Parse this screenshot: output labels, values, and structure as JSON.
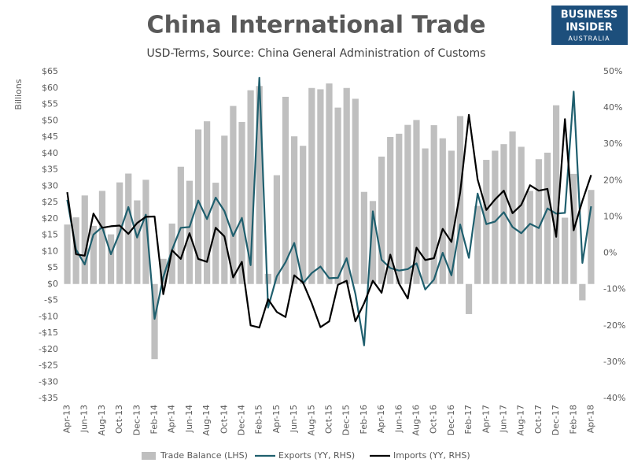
{
  "chart_data": {
    "type": "bar",
    "title": "China International Trade",
    "subtitle": "USD-Terms, Source: China General Administration of Customs",
    "logo": [
      "BUSINESS",
      "INSIDER",
      "AUSTRALIA"
    ],
    "y_label": "Billions",
    "categories": [
      "Apr-13",
      null,
      "Jun-13",
      null,
      "Aug-13",
      null,
      "Oct-13",
      null,
      "Dec-13",
      null,
      "Feb-14",
      null,
      "Apr-14",
      null,
      "Jun-14",
      null,
      "Aug-14",
      null,
      "Oct-14",
      null,
      "Dec-14",
      null,
      "Feb-15",
      null,
      "Apr-15",
      null,
      "Jun-15",
      null,
      "Aug-15",
      null,
      "Oct-15",
      null,
      "Dec-15",
      null,
      "Feb-16",
      null,
      "Apr-16",
      null,
      "Jun-16",
      null,
      "Aug-16",
      null,
      "Oct-16",
      null,
      "Dec-16",
      null,
      "Feb-17",
      null,
      "Apr-17",
      null,
      "Jun-17",
      null,
      "Aug-17",
      null,
      "Oct-17",
      null,
      "Dec-17",
      null,
      "Feb-18",
      null,
      "Apr-18"
    ],
    "series": [
      {
        "name": "Trade Balance (LHS)",
        "type": "bar",
        "axis": "y",
        "color": "#bfbfbf",
        "values": [
          18.2,
          20.4,
          27.1,
          17.8,
          28.5,
          15.2,
          31.1,
          33.8,
          25.6,
          31.9,
          -23,
          7.7,
          18.5,
          35.9,
          31.6,
          47.3,
          49.8,
          31.0,
          45.4,
          54.5,
          49.6,
          59.3,
          60.6,
          3.1,
          33.3,
          57.3,
          45.2,
          42.3,
          60,
          59.6,
          61.4,
          54,
          60,
          56.7,
          28.2,
          25.4,
          39,
          45,
          46,
          48.7,
          50.2,
          41.5,
          48.6,
          44.6,
          40.8,
          51.4,
          -9.2,
          23.9,
          38,
          40.8,
          42.8,
          46.7,
          42,
          28.5,
          38.2,
          40.2,
          54.7,
          20.3,
          33.7,
          -5,
          28.8
        ]
      },
      {
        "name": "Exports (YY, RHS)",
        "type": "line",
        "axis": "y2",
        "color": "#1f5f6e",
        "values": [
          14.7,
          1.0,
          -3.1,
          5.1,
          7.2,
          -0.3,
          5.6,
          12.7,
          4.3,
          10.6,
          -18.1,
          -6.6,
          0.9,
          7.0,
          7.2,
          14.5,
          9.4,
          15.3,
          11.6,
          4.7,
          9.7,
          -3.3,
          48.3,
          -15,
          -6.4,
          -2.5,
          2.8,
          -8.3,
          -5.5,
          -3.7,
          -6.9,
          -6.8,
          -1.4,
          -11.2,
          -25.4,
          11.5,
          -1.8,
          -4.1,
          -4.8,
          -4.4,
          -2.8,
          -10,
          -7.3,
          0.1,
          -6.1,
          7.9,
          -1.3,
          16.4,
          8,
          8.7,
          11.3,
          7.2,
          5.5,
          8.1,
          6.9,
          12.3,
          10.9,
          11.1,
          44.5,
          -2.7,
          12.9
        ]
      },
      {
        "name": "Imports (YY, RHS)",
        "type": "line",
        "axis": "y2",
        "color": "#000000",
        "values": [
          16.8,
          -0.3,
          -0.7,
          10.9,
          7,
          7.4,
          7.6,
          5.3,
          8.3,
          10,
          10.1,
          -11.3,
          0.8,
          -1.6,
          5.5,
          -1.6,
          -2.4,
          7,
          4.6,
          -6.7,
          -2.4,
          -19.9,
          -20.5,
          -12.7,
          -16.2,
          -17.6,
          -6.1,
          -8.1,
          -13.8,
          -20.4,
          -18.8,
          -8.7,
          -7.6,
          -18.8,
          -13.8,
          -7.6,
          -10.9,
          -0.4,
          -8.4,
          -12.5,
          1.5,
          -1.9,
          -1.4,
          6.7,
          3.1,
          16.7,
          38.1,
          20.3,
          11.9,
          14.8,
          17.2,
          11,
          13.3,
          18.7,
          17.2,
          17.7,
          4.5,
          36.9,
          6.3,
          14.4,
          21.5
        ]
      }
    ],
    "ylim": [
      -35,
      65
    ],
    "yticks": [
      {
        "value": 65,
        "label": "$65"
      },
      {
        "value": 60,
        "label": "$60"
      },
      {
        "value": 55,
        "label": "$55"
      },
      {
        "value": 50,
        "label": "$50"
      },
      {
        "value": 45,
        "label": "$45"
      },
      {
        "value": 40,
        "label": "$40"
      },
      {
        "value": 35,
        "label": "$35"
      },
      {
        "value": 30,
        "label": "$30"
      },
      {
        "value": 25,
        "label": "$25"
      },
      {
        "value": 20,
        "label": "$20"
      },
      {
        "value": 15,
        "label": "$15"
      },
      {
        "value": 10,
        "label": "$10"
      },
      {
        "value": 5,
        "label": "$5"
      },
      {
        "value": 0,
        "label": "$0"
      },
      {
        "value": -5,
        "label": "-$5"
      },
      {
        "value": -10,
        "label": "-$10"
      },
      {
        "value": -15,
        "label": "-$15"
      },
      {
        "value": -20,
        "label": "-$20"
      },
      {
        "value": -25,
        "label": "-$25"
      },
      {
        "value": -30,
        "label": "-$30"
      },
      {
        "value": -35,
        "label": "-$35"
      }
    ],
    "y2lim": [
      -40,
      50
    ],
    "y2ticks": [
      {
        "value": 50,
        "label": "50%"
      },
      {
        "value": 40,
        "label": "40%"
      },
      {
        "value": 30,
        "label": "30%"
      },
      {
        "value": 20,
        "label": "20%"
      },
      {
        "value": 10,
        "label": "10%"
      },
      {
        "value": 0,
        "label": "0%"
      },
      {
        "value": -10,
        "label": "-10%"
      },
      {
        "value": -20,
        "label": "-20%"
      },
      {
        "value": -30,
        "label": "-30%"
      },
      {
        "value": -40,
        "label": "-40%"
      }
    ],
    "grid": false,
    "legend": "bottom"
  }
}
